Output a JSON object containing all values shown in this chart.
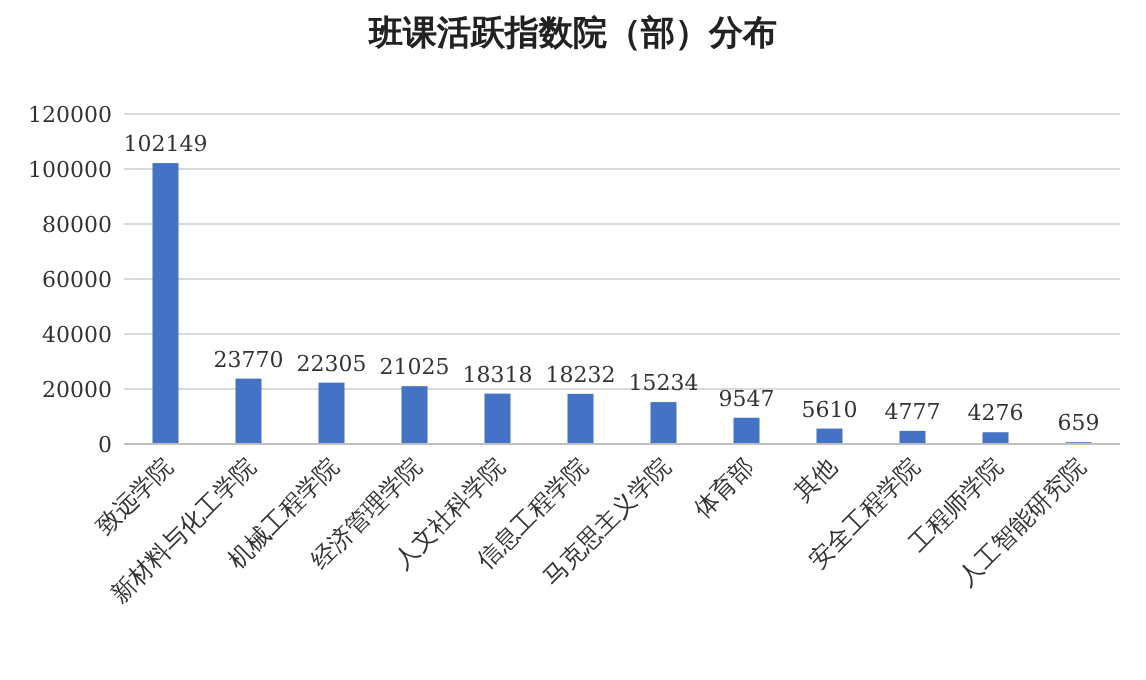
{
  "chart_data": {
    "type": "bar",
    "title": "班课活跃指数院（部）分布",
    "categories": [
      "致远学院",
      "新材料与化工学院",
      "机械工程学院",
      "经济管理学院",
      "人文社科学院",
      "信息工程学院",
      "马克思主义学院",
      "体育部",
      "其他",
      "安全工程学院",
      "工程师学院",
      "人工智能研究院"
    ],
    "values": [
      102149,
      23770,
      22305,
      21025,
      18318,
      18232,
      15234,
      9547,
      5610,
      4777,
      4276,
      659
    ],
    "color": "#4472c4",
    "ylim": [
      0,
      120000
    ],
    "yticks": [
      0,
      20000,
      40000,
      60000,
      80000,
      100000,
      120000
    ],
    "grid": "y",
    "data_labels": true
  }
}
